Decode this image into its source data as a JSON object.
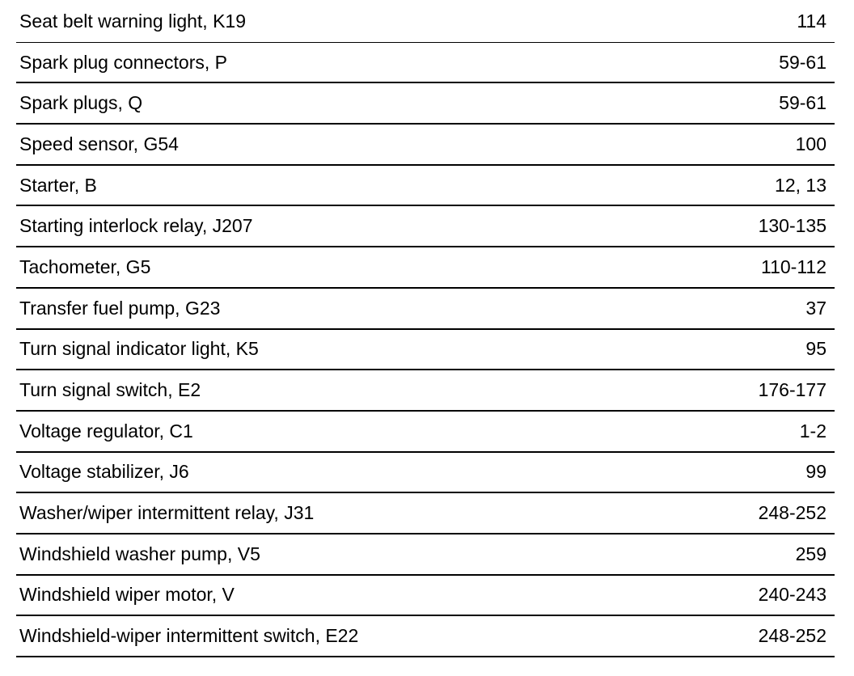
{
  "rows": [
    {
      "name": "Seat belt warning light, K19",
      "pages": "114"
    },
    {
      "name": "Spark plug connectors, P",
      "pages": "59-61"
    },
    {
      "name": "Spark plugs, Q",
      "pages": "59-61"
    },
    {
      "name": "Speed sensor, G54",
      "pages": "100"
    },
    {
      "name": "Starter, B",
      "pages": "12, 13"
    },
    {
      "name": "Starting interlock relay, J207",
      "pages": "130-135"
    },
    {
      "name": "Tachometer, G5",
      "pages": "110-112"
    },
    {
      "name": "Transfer fuel pump, G23",
      "pages": "37"
    },
    {
      "name": "Turn signal indicator light, K5",
      "pages": "95"
    },
    {
      "name": "Turn signal switch, E2",
      "pages": "176-177"
    },
    {
      "name": "Voltage regulator, C1",
      "pages": "1-2"
    },
    {
      "name": "Voltage stabilizer, J6",
      "pages": "99"
    },
    {
      "name": "Washer/wiper intermittent relay, J31",
      "pages": "248-252"
    },
    {
      "name": "Windshield washer pump, V5",
      "pages": "259"
    },
    {
      "name": "Windshield wiper motor, V",
      "pages": "240-243"
    },
    {
      "name": "Windshield-wiper intermittent switch, E22",
      "pages": "248-252"
    }
  ]
}
